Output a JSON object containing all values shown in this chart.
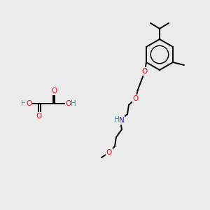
{
  "bg_color": "#ebebeb",
  "bond_color": "#000000",
  "bond_lw": 1.4,
  "atom_colors": {
    "O": "#ff0000",
    "N": "#1a1aff",
    "H": "#4a9090",
    "C": "#000000"
  },
  "font_size": 7.5,
  "fig_size": [
    3.0,
    3.0
  ],
  "dpi": 100
}
